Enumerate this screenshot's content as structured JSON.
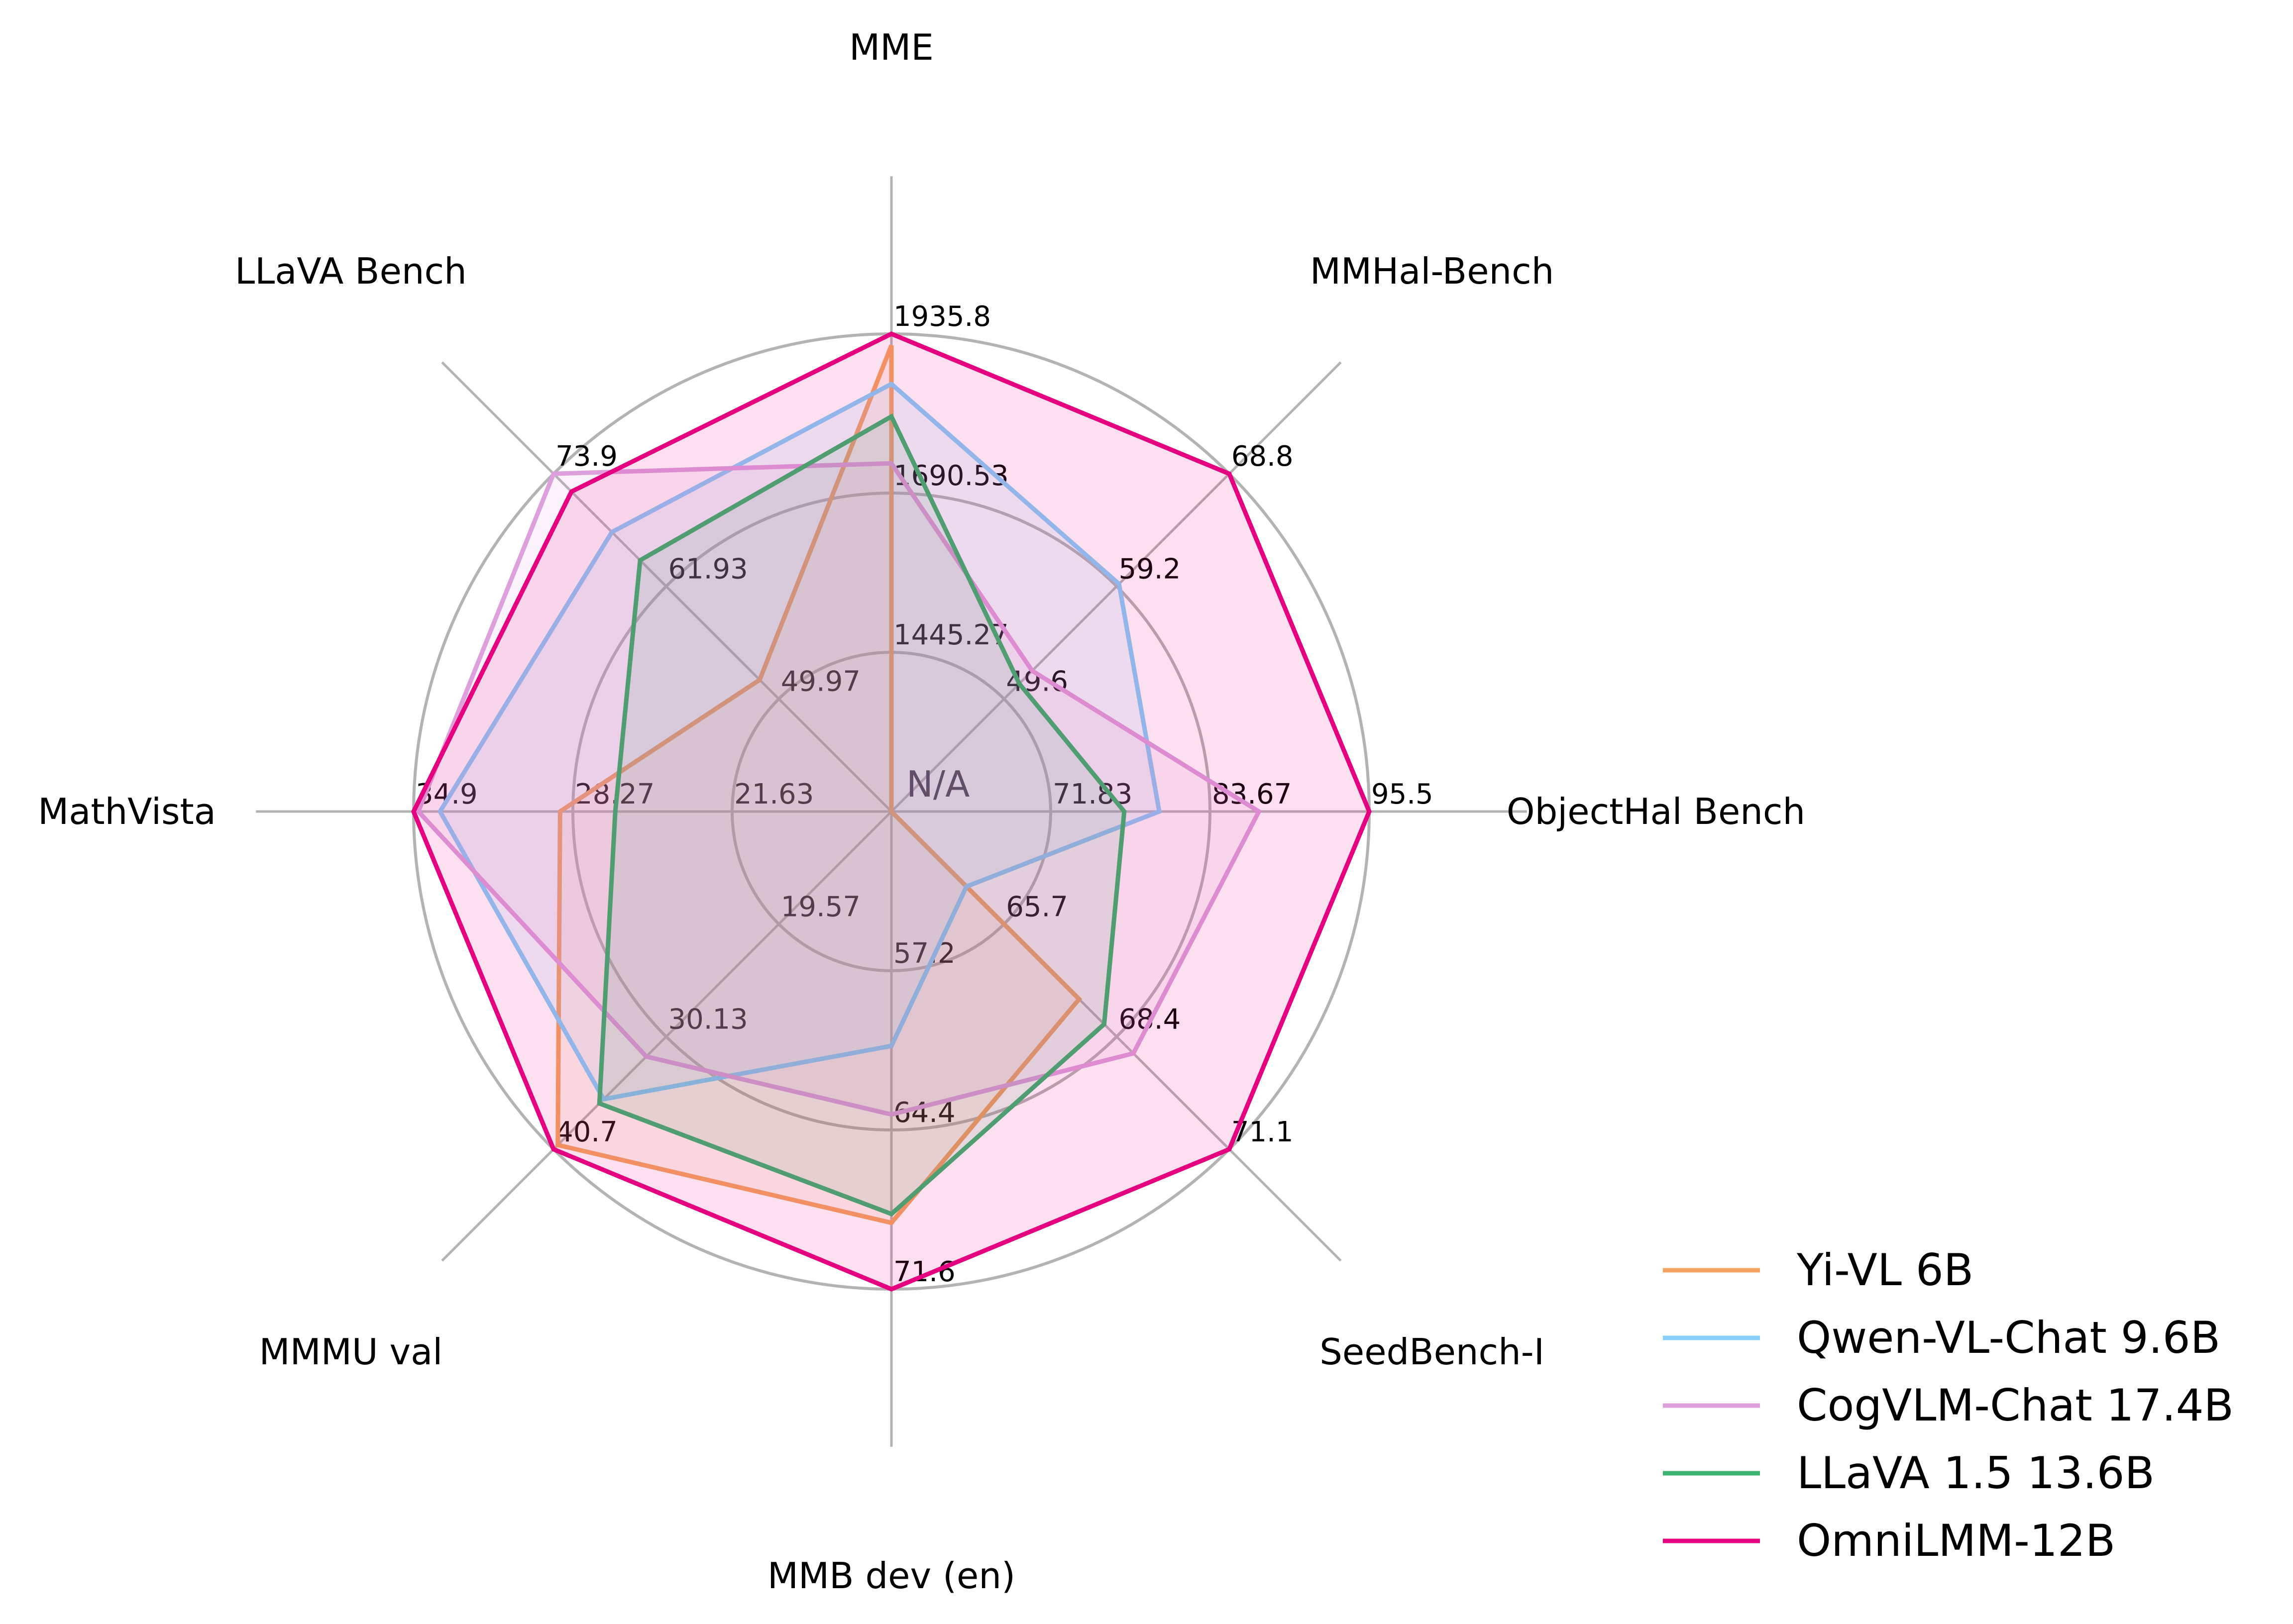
{
  "chart_data": {
    "type": "radar",
    "grid": true,
    "legend_position": "bottom-right",
    "center_label": "N/A",
    "axes": [
      {
        "name": "MME",
        "range": [
          1200,
          1935.8
        ],
        "ticks": [
          "1445.27",
          "1690.53",
          "1935.8"
        ]
      },
      {
        "name": "MMHal-Bench",
        "range": [
          40,
          68.8
        ],
        "ticks": [
          "49.6",
          "59.2",
          "68.8"
        ]
      },
      {
        "name": "ObjectHal Bench",
        "range": [
          60,
          95.5
        ],
        "ticks": [
          "71.83",
          "83.67",
          "95.5"
        ]
      },
      {
        "name": "SeedBench-I",
        "range": [
          63,
          71.1
        ],
        "ticks": [
          "65.7",
          "68.4",
          "71.1"
        ]
      },
      {
        "name": "MMB dev (en)",
        "range": [
          50,
          71.6
        ],
        "ticks": [
          "57.2",
          "64.4",
          "71.6"
        ]
      },
      {
        "name": "MMMU val",
        "range": [
          9,
          40.7
        ],
        "ticks": [
          "19.57",
          "30.13",
          "40.7"
        ]
      },
      {
        "name": "MathVista",
        "range": [
          15,
          34.9
        ],
        "ticks": [
          "21.63",
          "28.27",
          "34.9"
        ]
      },
      {
        "name": "LLaVA Bench",
        "range": [
          38,
          73.9
        ],
        "ticks": [
          "49.97",
          "61.93",
          "73.9"
        ]
      }
    ],
    "series": [
      {
        "name": "Yi-VL 6B",
        "color": "#f4a460",
        "values": [
          1918,
          null,
          null,
          67.5,
          68.6,
          40.3,
          28.8,
          52.0
        ]
      },
      {
        "name": "Qwen-VL-Chat 9.6B",
        "color": "#87cefa",
        "values": [
          1858.6,
          59.4,
          79.9,
          64.8,
          60.6,
          36.0,
          33.8,
          67.7
        ]
      },
      {
        "name": "CogVLM-Chat 17.4B",
        "color": "#dda0dd",
        "values": [
          1736.4,
          52.0,
          87.3,
          68.8,
          63.7,
          32.0,
          34.7,
          73.9
        ]
      },
      {
        "name": "LLaVA 1.5 13.6B",
        "color": "#3cb371",
        "values": [
          1808.5,
          50.9,
          77.3,
          68.1,
          68.2,
          36.4,
          26.5,
          64.7
        ]
      },
      {
        "name": "OmniLMM-12B",
        "color": "#e4007f",
        "values": [
          1935.8,
          68.8,
          95.5,
          71.1,
          71.6,
          40.7,
          34.9,
          72.0
        ]
      }
    ]
  }
}
